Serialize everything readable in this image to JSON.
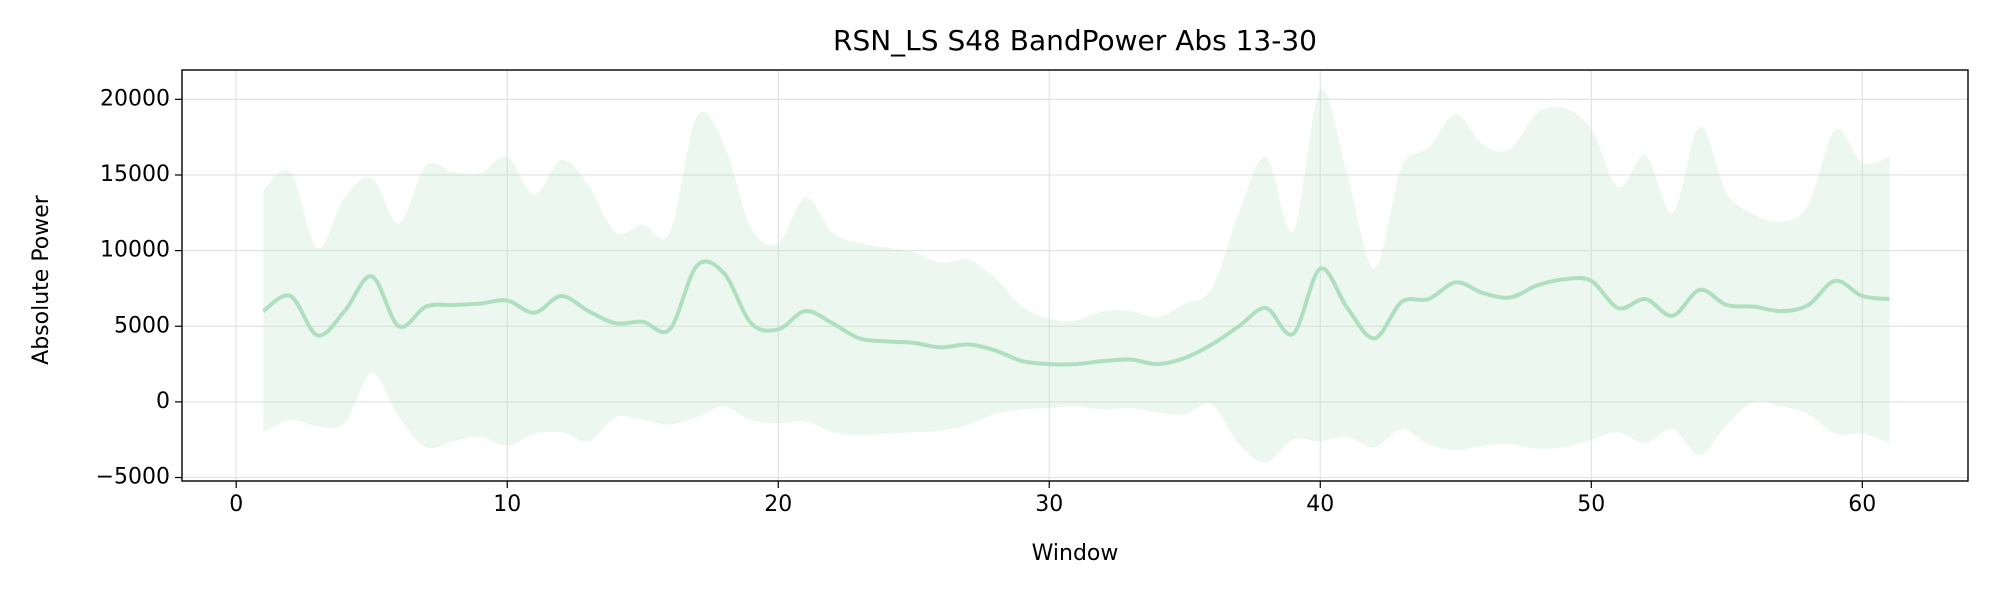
{
  "chart_data": {
    "type": "line",
    "title": "RSN_LS S48 BandPower Abs 13-30",
    "x_label": "Window",
    "y_label": "Absolute Power",
    "x": [
      1,
      2,
      3,
      4,
      5,
      6,
      7,
      8,
      9,
      10,
      11,
      12,
      13,
      14,
      15,
      16,
      17,
      18,
      19,
      20,
      21,
      22,
      23,
      24,
      25,
      26,
      27,
      28,
      29,
      30,
      31,
      32,
      33,
      34,
      35,
      36,
      37,
      38,
      39,
      40,
      41,
      42,
      43,
      44,
      45,
      46,
      47,
      48,
      49,
      50,
      51,
      52,
      53,
      54,
      55,
      56,
      57,
      58,
      59,
      60,
      61
    ],
    "values": [
      6000,
      7000,
      4400,
      6000,
      8300,
      5000,
      6300,
      6400,
      6500,
      6700,
      5900,
      7000,
      6000,
      5200,
      5300,
      4800,
      9000,
      8500,
      5200,
      4800,
      6000,
      5200,
      4200,
      4000,
      3900,
      3600,
      3800,
      3400,
      2700,
      2500,
      2500,
      2700,
      2800,
      2500,
      2900,
      3800,
      5000,
      6200,
      4500,
      8800,
      6200,
      4200,
      6600,
      6800,
      7900,
      7200,
      6900,
      7700,
      8100,
      8000,
      6200,
      6800,
      5700,
      7400,
      6400,
      6300,
      6000,
      6400,
      8000,
      7000,
      6800
    ],
    "band_upper": [
      14000,
      15200,
      10200,
      13500,
      14800,
      11800,
      15600,
      15200,
      15100,
      16200,
      13700,
      16000,
      14300,
      11200,
      11700,
      11200,
      18900,
      17000,
      11500,
      10500,
      13500,
      11200,
      10500,
      10200,
      9900,
      9200,
      9400,
      8200,
      6300,
      5500,
      5400,
      6000,
      6000,
      5600,
      6500,
      7500,
      12500,
      16200,
      11300,
      20600,
      15000,
      8800,
      15500,
      16800,
      19000,
      17000,
      16700,
      19100,
      19400,
      18000,
      14200,
      16300,
      12500,
      18200,
      13800,
      12400,
      11900,
      13000,
      18000,
      15800,
      16200
    ],
    "band_lower": [
      -2000,
      -1200,
      -1600,
      -1400,
      1900,
      -1000,
      -3000,
      -2600,
      -2300,
      -2900,
      -2100,
      -2000,
      -2600,
      -1000,
      -1200,
      -1500,
      -1000,
      -300,
      -1200,
      -1400,
      -1300,
      -2000,
      -2200,
      -2100,
      -2000,
      -1900,
      -1500,
      -800,
      -500,
      -400,
      -300,
      -500,
      -400,
      -700,
      -800,
      -200,
      -2800,
      -4000,
      -2500,
      -2600,
      -2300,
      -3000,
      -1800,
      -2800,
      -3200,
      -2900,
      -2800,
      -3100,
      -3000,
      -2500,
      -2000,
      -2700,
      -1800,
      -3500,
      -1500,
      0,
      -300,
      -800,
      -2100,
      -2100,
      -2700
    ],
    "color": "#b0dfc0",
    "xlim": [
      -2,
      63.9
    ],
    "xticks": [
      0,
      10,
      20,
      30,
      40,
      50,
      60
    ],
    "ylim": [
      -5230,
      21940
    ],
    "yticks": [
      {
        "value": -5000,
        "label": "−5000"
      },
      0,
      5000,
      10000,
      15000,
      20000
    ],
    "grid": true
  }
}
